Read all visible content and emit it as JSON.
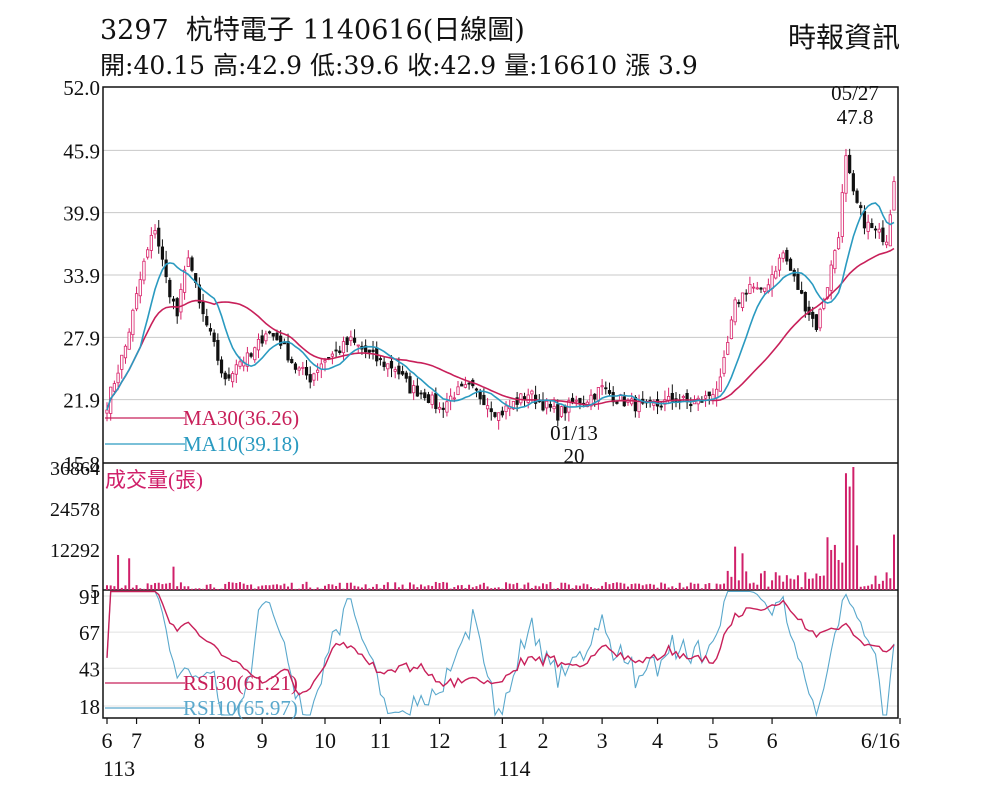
{
  "header": {
    "code": "3297",
    "name": "杭特電子",
    "date": "1140616",
    "chart_kind": "(日線圖)",
    "source": "時報資訊",
    "open_label": "開:",
    "open": "40.15",
    "high_label": "高:",
    "high": "42.9",
    "low_label": "低:",
    "low": "39.6",
    "close_label": "收:",
    "close": "42.9",
    "volume_label": "量:",
    "volume": "16610",
    "change_label": "漲",
    "change": "3.9"
  },
  "colors": {
    "up": "#d8226a",
    "down": "#111111",
    "ma30": "#c8205a",
    "ma10": "#2a9ac0",
    "rsi30": "#c8205a",
    "rsi10": "#5aa8cc",
    "volume": "#d0206a",
    "grid": "#c8c8c8"
  },
  "chart_data": [
    {
      "type": "candlestick",
      "panel": "price",
      "y_ticks": [
        "52.0",
        "45.9",
        "39.9",
        "33.9",
        "27.9",
        "21.9",
        "15.8"
      ],
      "ylim": [
        15.8,
        52.0
      ],
      "legend": [
        {
          "label": "MA30(36.26)",
          "value": 36.26
        },
        {
          "label": "MA10(39.18)",
          "value": 39.18
        }
      ],
      "annotations": [
        {
          "date": "05/27",
          "value": "47.8",
          "kind": "high"
        },
        {
          "date": "01/13",
          "value": "20",
          "kind": "low"
        }
      ],
      "anchors": [
        {
          "day": 0,
          "close": 21.5
        },
        {
          "day": 5,
          "close": 27.0
        },
        {
          "day": 10,
          "close": 35.0
        },
        {
          "day": 13,
          "close": 38.5
        },
        {
          "day": 16,
          "close": 33.5
        },
        {
          "day": 19,
          "close": 30.0
        },
        {
          "day": 22,
          "close": 36.0
        },
        {
          "day": 25,
          "close": 31.0
        },
        {
          "day": 29,
          "close": 27.0
        },
        {
          "day": 32,
          "close": 23.5
        },
        {
          "day": 35,
          "close": 25.5
        },
        {
          "day": 39,
          "close": 26.0
        },
        {
          "day": 43,
          "close": 28.5
        },
        {
          "day": 47,
          "close": 27.5
        },
        {
          "day": 51,
          "close": 25.0
        },
        {
          "day": 55,
          "close": 24.0
        },
        {
          "day": 58,
          "close": 25.5
        },
        {
          "day": 62,
          "close": 26.5
        },
        {
          "day": 66,
          "close": 27.5
        },
        {
          "day": 70,
          "close": 26.5
        },
        {
          "day": 74,
          "close": 25.5
        },
        {
          "day": 78,
          "close": 25.0
        },
        {
          "day": 82,
          "close": 23.0
        },
        {
          "day": 86,
          "close": 22.5
        },
        {
          "day": 90,
          "close": 21.0
        },
        {
          "day": 94,
          "close": 22.5
        },
        {
          "day": 98,
          "close": 23.0
        },
        {
          "day": 102,
          "close": 22.0
        },
        {
          "day": 106,
          "close": 20.5
        },
        {
          "day": 110,
          "close": 21.5
        },
        {
          "day": 114,
          "close": 22.5
        },
        {
          "day": 118,
          "close": 21.5
        },
        {
          "day": 122,
          "close": 20.5
        },
        {
          "day": 126,
          "close": 21.5
        },
        {
          "day": 130,
          "close": 22.0
        },
        {
          "day": 134,
          "close": 23.0
        },
        {
          "day": 138,
          "close": 22.0
        },
        {
          "day": 142,
          "close": 21.5
        },
        {
          "day": 146,
          "close": 21.0
        },
        {
          "day": 150,
          "close": 21.5
        },
        {
          "day": 154,
          "close": 22.0
        },
        {
          "day": 158,
          "close": 21.5
        },
        {
          "day": 162,
          "close": 22.0
        },
        {
          "day": 166,
          "close": 23.5
        },
        {
          "day": 170,
          "close": 31.0
        },
        {
          "day": 174,
          "close": 33.0
        },
        {
          "day": 177,
          "close": 32.0
        },
        {
          "day": 180,
          "close": 34.0
        },
        {
          "day": 183,
          "close": 36.0
        },
        {
          "day": 186,
          "close": 33.5
        },
        {
          "day": 189,
          "close": 31.0
        },
        {
          "day": 192,
          "close": 29.0
        },
        {
          "day": 195,
          "close": 33.0
        },
        {
          "day": 198,
          "close": 38.0
        },
        {
          "day": 200,
          "close": 45.0
        },
        {
          "day": 202,
          "close": 41.5
        },
        {
          "day": 205,
          "close": 39.0
        },
        {
          "day": 208,
          "close": 38.0
        },
        {
          "day": 211,
          "close": 37.5
        },
        {
          "day": 213,
          "close": 42.9
        }
      ]
    },
    {
      "type": "bar",
      "panel": "volume",
      "title": "成交量(張)",
      "y_ticks": [
        "36864",
        "24578",
        "12292",
        "5"
      ],
      "ylim": [
        5,
        36864
      ],
      "spikes": [
        {
          "day": 3,
          "value": 10500
        },
        {
          "day": 6,
          "value": 9500
        },
        {
          "day": 18,
          "value": 7000
        },
        {
          "day": 170,
          "value": 13000
        },
        {
          "day": 172,
          "value": 11000
        },
        {
          "day": 196,
          "value": 12000
        },
        {
          "day": 198,
          "value": 9000
        },
        {
          "day": 200,
          "value": 35000
        },
        {
          "day": 201,
          "value": 31000
        },
        {
          "day": 202,
          "value": 36864
        },
        {
          "day": 213,
          "value": 16610
        }
      ]
    },
    {
      "type": "line",
      "panel": "rsi",
      "y_ticks": [
        "91",
        "67",
        "43",
        "18"
      ],
      "ylim": [
        10,
        95
      ],
      "legend": [
        {
          "label": "RSI30(61.21)",
          "value": 61.21
        },
        {
          "label": "RSI10(65.97)",
          "value": 65.97
        }
      ]
    }
  ],
  "x_axis": {
    "labels": [
      {
        "text": "6",
        "day": 0
      },
      {
        "text": "7",
        "day": 8
      },
      {
        "text": "8",
        "day": 25
      },
      {
        "text": "9",
        "day": 42
      },
      {
        "text": "10",
        "day": 59
      },
      {
        "text": "11",
        "day": 74
      },
      {
        "text": "12",
        "day": 90
      },
      {
        "text": "1",
        "day": 107
      },
      {
        "text": "2",
        "day": 118
      },
      {
        "text": "3",
        "day": 134
      },
      {
        "text": "4",
        "day": 149
      },
      {
        "text": "5",
        "day": 164
      },
      {
        "text": "6",
        "day": 180
      },
      {
        "text": "6/16",
        "day": 213
      }
    ],
    "year_labels": [
      {
        "text": "113",
        "day": 0
      },
      {
        "text": "114",
        "day": 107
      }
    ]
  }
}
